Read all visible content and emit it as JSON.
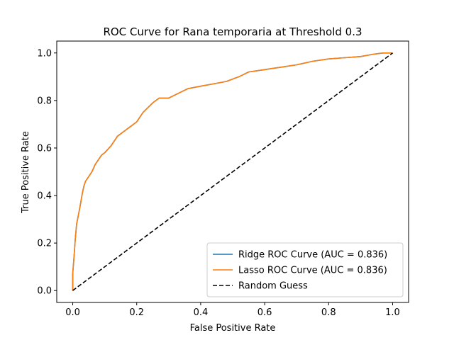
{
  "chart_data": {
    "type": "line",
    "title": "ROC Curve for Rana temporaria at Threshold 0.3",
    "xlabel": "False Positive Rate",
    "ylabel": "True Positive Rate",
    "xlim": [
      -0.05,
      1.05
    ],
    "ylim": [
      -0.05,
      1.05
    ],
    "xticks": [
      "0.0",
      "0.2",
      "0.4",
      "0.6",
      "0.8",
      "1.0"
    ],
    "yticks": [
      "0.0",
      "0.2",
      "0.4",
      "0.6",
      "0.8",
      "1.0"
    ],
    "grid": false,
    "legend_position": "lower-right",
    "series": [
      {
        "name": "Ridge ROC Curve (AUC = 0.836)",
        "color": "#1f77b4",
        "style": "solid",
        "x": [
          0,
          0,
          0.005,
          0.008,
          0.012,
          0.018,
          0.025,
          0.03,
          0.035,
          0.04,
          0.05,
          0.06,
          0.07,
          0.08,
          0.09,
          0.1,
          0.12,
          0.14,
          0.16,
          0.17,
          0.18,
          0.2,
          0.22,
          0.25,
          0.27,
          0.3,
          0.33,
          0.36,
          0.4,
          0.44,
          0.48,
          0.52,
          0.55,
          0.6,
          0.65,
          0.7,
          0.75,
          0.8,
          0.85,
          0.9,
          0.94,
          0.97,
          1.0
        ],
        "y": [
          0,
          0.07,
          0.16,
          0.22,
          0.28,
          0.32,
          0.37,
          0.41,
          0.44,
          0.46,
          0.48,
          0.5,
          0.53,
          0.55,
          0.57,
          0.58,
          0.61,
          0.65,
          0.67,
          0.68,
          0.69,
          0.71,
          0.75,
          0.79,
          0.81,
          0.81,
          0.83,
          0.85,
          0.86,
          0.87,
          0.88,
          0.9,
          0.92,
          0.93,
          0.94,
          0.95,
          0.965,
          0.975,
          0.98,
          0.985,
          0.995,
          1.0,
          1.0
        ]
      },
      {
        "name": "Lasso ROC Curve (AUC = 0.836)",
        "color": "#ff7f0e",
        "style": "solid",
        "x": [
          0,
          0,
          0.005,
          0.008,
          0.012,
          0.018,
          0.025,
          0.03,
          0.035,
          0.04,
          0.05,
          0.06,
          0.07,
          0.08,
          0.09,
          0.1,
          0.12,
          0.14,
          0.16,
          0.17,
          0.18,
          0.2,
          0.22,
          0.25,
          0.27,
          0.3,
          0.33,
          0.36,
          0.4,
          0.44,
          0.48,
          0.52,
          0.55,
          0.6,
          0.65,
          0.7,
          0.75,
          0.8,
          0.85,
          0.9,
          0.94,
          0.97,
          1.0
        ],
        "y": [
          0,
          0.07,
          0.16,
          0.22,
          0.28,
          0.32,
          0.37,
          0.41,
          0.44,
          0.46,
          0.48,
          0.5,
          0.53,
          0.55,
          0.57,
          0.58,
          0.61,
          0.65,
          0.67,
          0.68,
          0.69,
          0.71,
          0.75,
          0.79,
          0.81,
          0.81,
          0.83,
          0.85,
          0.86,
          0.87,
          0.88,
          0.9,
          0.92,
          0.93,
          0.94,
          0.95,
          0.965,
          0.975,
          0.98,
          0.985,
          0.995,
          1.0,
          1.0
        ]
      },
      {
        "name": "Random Guess",
        "color": "#000000",
        "style": "dashed",
        "x": [
          0,
          1
        ],
        "y": [
          0,
          1
        ]
      }
    ]
  }
}
